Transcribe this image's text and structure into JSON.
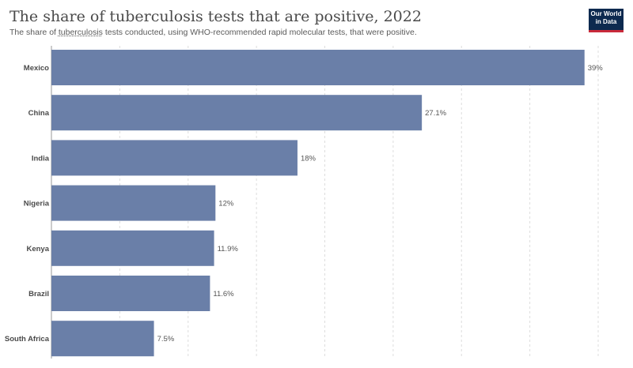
{
  "header": {
    "title": "The share of tuberculosis tests that are positive, 2022",
    "subtitle_prefix": "The share of ",
    "subtitle_link": "tuberculosis",
    "subtitle_suffix": " tests conducted, using WHO-recommended rapid molecular tests, that were positive."
  },
  "logo": {
    "line1": "Our World",
    "line2": "in Data"
  },
  "colors": {
    "bar": "#6a7fa8",
    "grid": "#dddddd",
    "axis": "#999999"
  },
  "chart_data": {
    "type": "bar",
    "orientation": "horizontal",
    "categories": [
      "Mexico",
      "China",
      "India",
      "Nigeria",
      "Kenya",
      "Brazil",
      "South Africa"
    ],
    "values": [
      39,
      27.1,
      18,
      12,
      11.9,
      11.6,
      7.5
    ],
    "value_labels": [
      "39%",
      "27.1%",
      "18%",
      "12%",
      "11.9%",
      "11.6%",
      "7.5%"
    ],
    "xlim": [
      0,
      40
    ],
    "grid": true
  }
}
